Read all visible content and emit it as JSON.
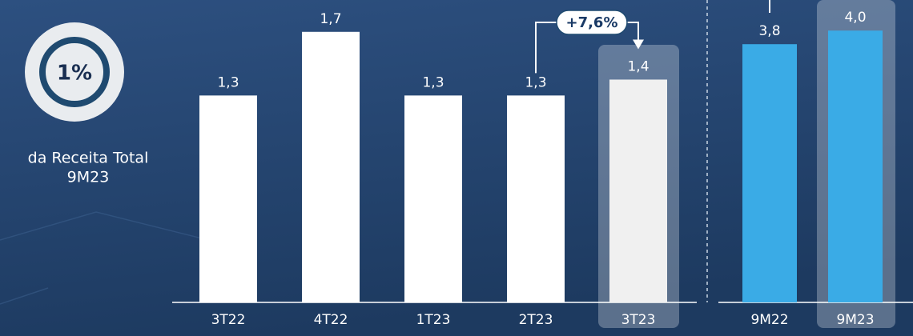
{
  "badge": {
    "value": "1%",
    "caption": "da Receita Total",
    "caption_period": "9M23"
  },
  "chart_data": [
    {
      "type": "bar",
      "categories": [
        "3T22",
        "4T22",
        "1T23",
        "2T23",
        "3T23"
      ],
      "values": [
        1.3,
        1.7,
        1.3,
        1.3,
        1.4
      ],
      "value_labels": [
        "1,3",
        "1,7",
        "1,3",
        "1,3",
        "1,4"
      ],
      "colors": [
        "#ffffff",
        "#ffffff",
        "#ffffff",
        "#ffffff",
        "#f0f0f0"
      ],
      "highlight": "3T23",
      "ylim": [
        0,
        1.9
      ],
      "annotation": "+7,6%"
    },
    {
      "type": "bar",
      "categories": [
        "9M22",
        "9M23"
      ],
      "values": [
        3.8,
        4.0
      ],
      "value_labels": [
        "3,8",
        "4,0"
      ],
      "color": "#3aabe6",
      "highlight": "9M23",
      "ylim": [
        0,
        4.45
      ]
    }
  ]
}
